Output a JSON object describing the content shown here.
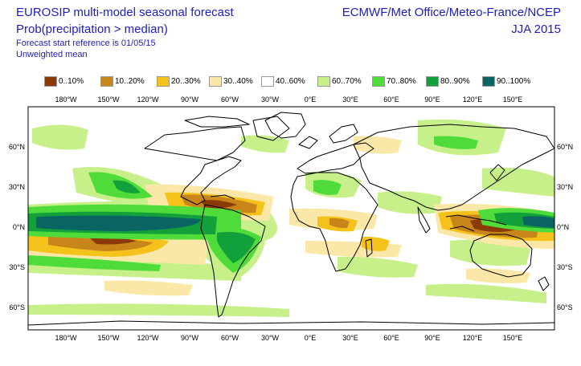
{
  "header": {
    "title": "EUROSIP multi-model seasonal forecast",
    "subtitle": "Prob(precipitation > median)",
    "forecast_ref": "Forecast start reference is 01/05/15",
    "mean_type": "Unweighted mean",
    "centres": "ECMWF/Met Office/Meteo-France/NCEP",
    "season": "JJA 2015"
  },
  "legend": [
    {
      "label": "0..10%",
      "color": "#8b3a0a"
    },
    {
      "label": "10..20%",
      "color": "#c8861a"
    },
    {
      "label": "20..30%",
      "color": "#f4c21a"
    },
    {
      "label": "30..40%",
      "color": "#fbe8a8"
    },
    {
      "label": "40..60%",
      "color": "#ffffff"
    },
    {
      "label": "60..70%",
      "color": "#c7ef8a"
    },
    {
      "label": "70..80%",
      "color": "#4fdc3a"
    },
    {
      "label": "80..90%",
      "color": "#12a03a"
    },
    {
      "label": "90..100%",
      "color": "#0b6464"
    }
  ],
  "axes": {
    "lon_top": [
      "180°W",
      "150°W",
      "120°W",
      "90°W",
      "60°W",
      "30°W",
      "0°E",
      "30°E",
      "60°E",
      "90°E",
      "120°E",
      "150°E"
    ],
    "lon_bottom": [
      "180°W",
      "150°W",
      "120°W",
      "90°W",
      "60°W",
      "30°W",
      "0°E",
      "30°E",
      "60°E",
      "90°E",
      "120°E",
      "150°E"
    ],
    "lat_left": [
      "60°N",
      "30°N",
      "0°N",
      "30°S",
      "60°S"
    ],
    "lat_right": [
      "60°N",
      "30°N",
      "0°N",
      "30°S",
      "60°S"
    ]
  }
}
